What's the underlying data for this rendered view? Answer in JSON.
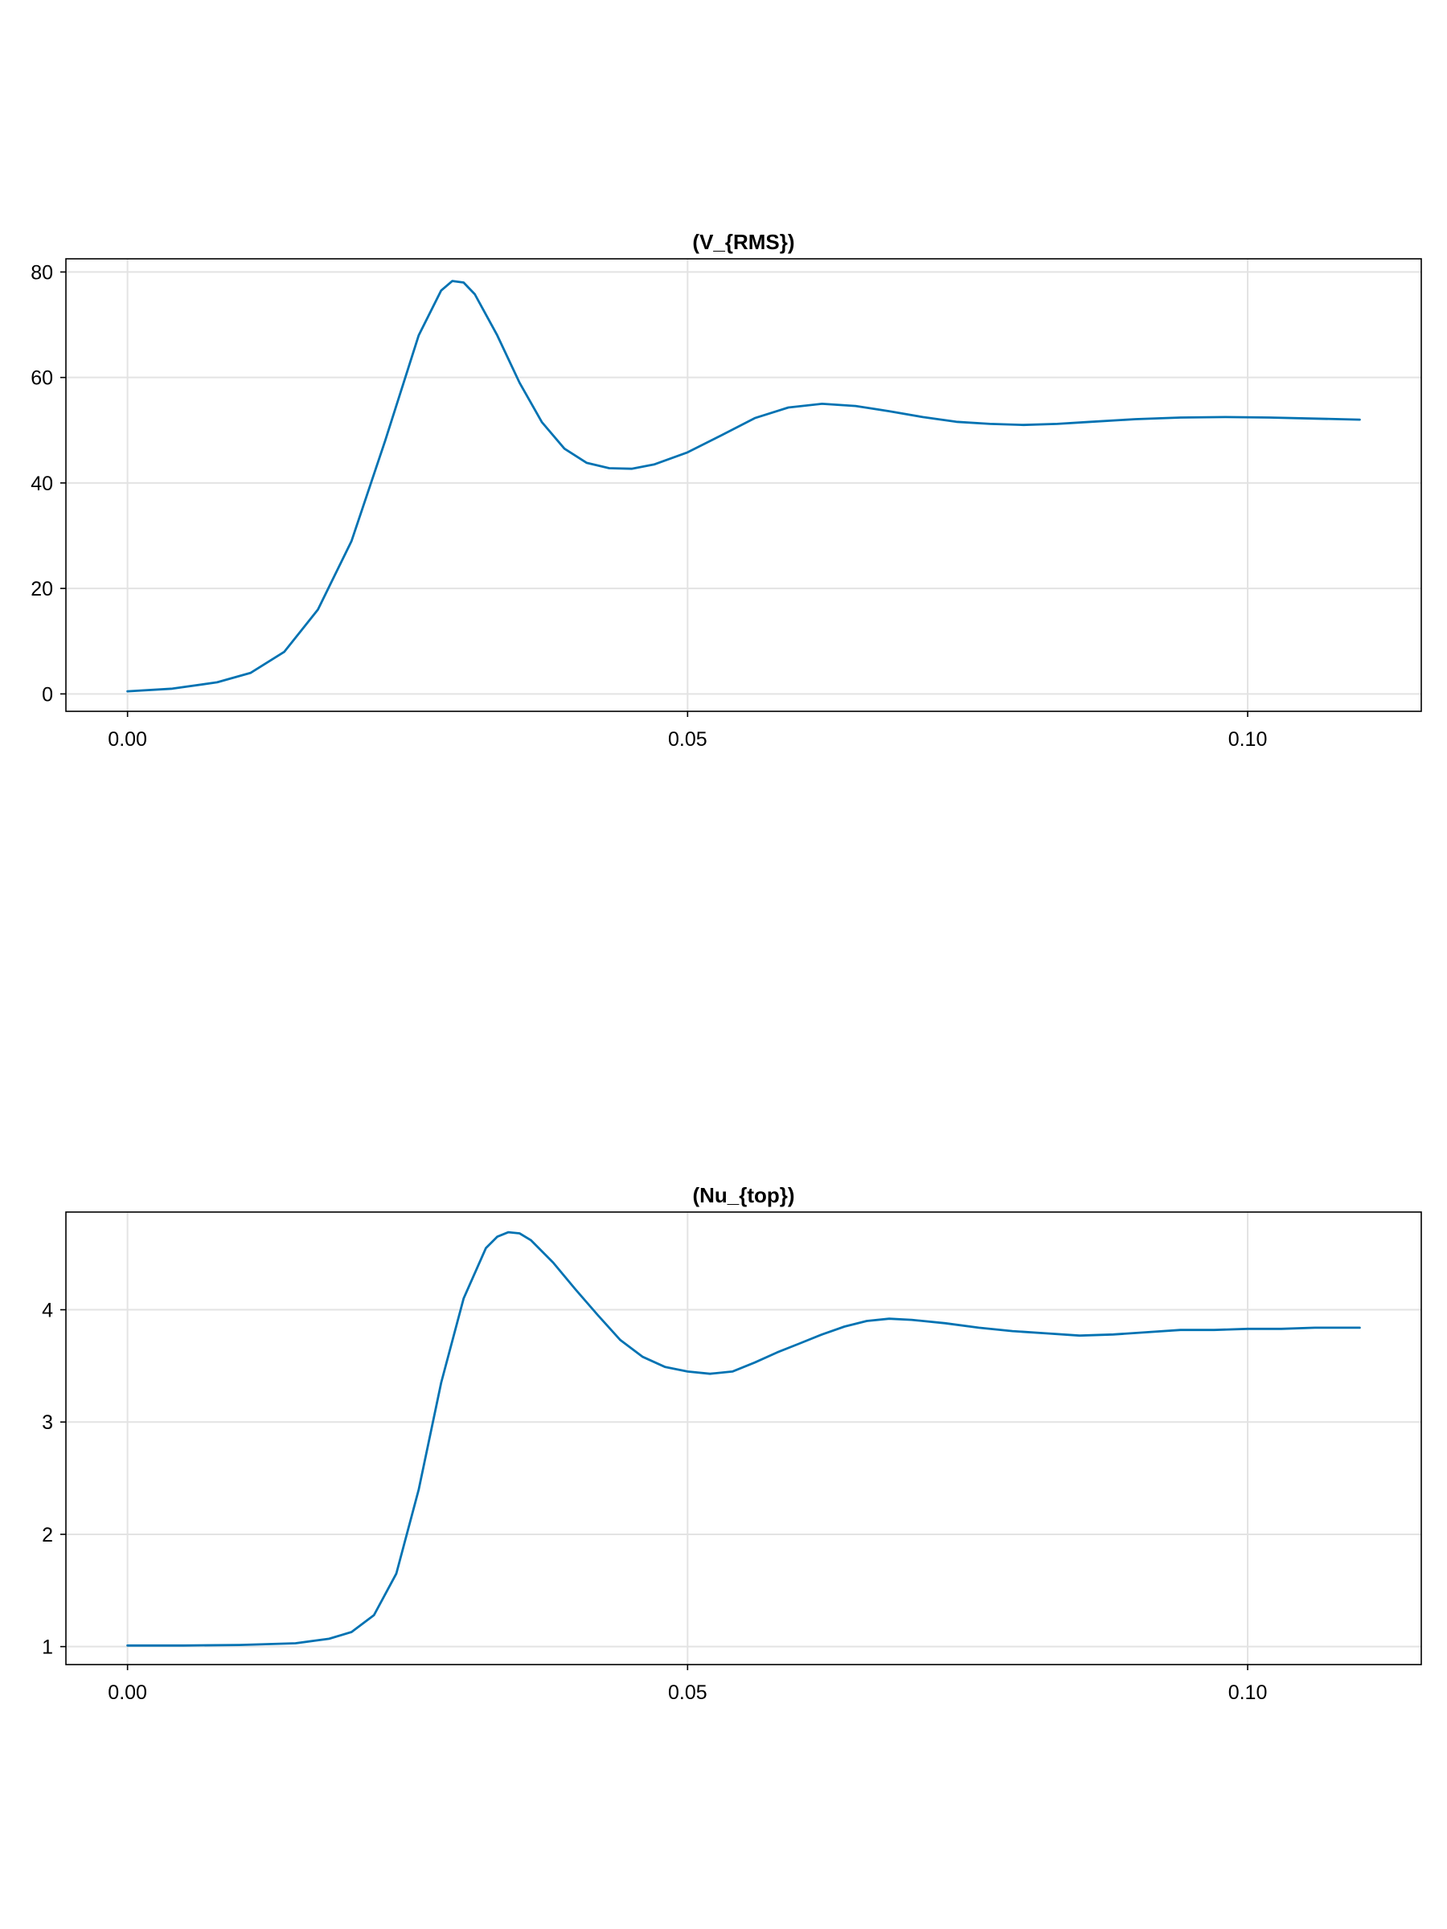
{
  "colors": {
    "series": "#0072b2",
    "grid": "#e3e3e3",
    "axis": "#000000"
  },
  "chart_data": [
    {
      "type": "line",
      "title": "(V_{RMS})",
      "xlim": [
        -0.0055,
        0.1155
      ],
      "ylim": [
        -3.3,
        82.5
      ],
      "xticks": [
        0.0,
        0.05,
        0.1
      ],
      "xtick_labels": [
        "0.00",
        "0.05",
        "0.10"
      ],
      "yticks": [
        0,
        20,
        40,
        60,
        80
      ],
      "ytick_labels": [
        "0",
        "20",
        "40",
        "60",
        "80"
      ],
      "grid": true,
      "series": [
        {
          "x": [
            0.0,
            0.004,
            0.008,
            0.011,
            0.014,
            0.017,
            0.02,
            0.023,
            0.026,
            0.028,
            0.029,
            0.03,
            0.031,
            0.033,
            0.035,
            0.037,
            0.039,
            0.041,
            0.043,
            0.045,
            0.047,
            0.05,
            0.053,
            0.056,
            0.059,
            0.062,
            0.065,
            0.068,
            0.071,
            0.074,
            0.077,
            0.08,
            0.083,
            0.086,
            0.09,
            0.094,
            0.098,
            0.102,
            0.106,
            0.11
          ],
          "y": [
            0.5,
            1.0,
            2.2,
            4.0,
            8.0,
            16.0,
            29.0,
            48.0,
            68.0,
            76.5,
            78.3,
            78.0,
            75.8,
            68.0,
            59.0,
            51.5,
            46.5,
            43.8,
            42.8,
            42.7,
            43.5,
            45.8,
            49.0,
            52.3,
            54.3,
            55.0,
            54.6,
            53.6,
            52.5,
            51.6,
            51.2,
            51.0,
            51.2,
            51.6,
            52.1,
            52.4,
            52.5,
            52.4,
            52.2,
            52.0
          ]
        }
      ]
    },
    {
      "type": "line",
      "title": "(Nu_{top})",
      "xlim": [
        -0.0055,
        0.1155
      ],
      "ylim": [
        0.84,
        4.87
      ],
      "xticks": [
        0.0,
        0.05,
        0.1
      ],
      "xtick_labels": [
        "0.00",
        "0.05",
        "0.10"
      ],
      "yticks": [
        1,
        2,
        3,
        4
      ],
      "ytick_labels": [
        "1",
        "2",
        "3",
        "4"
      ],
      "grid": true,
      "series": [
        {
          "x": [
            0.0,
            0.005,
            0.01,
            0.015,
            0.018,
            0.02,
            0.022,
            0.024,
            0.026,
            0.028,
            0.03,
            0.032,
            0.033,
            0.034,
            0.035,
            0.036,
            0.038,
            0.04,
            0.042,
            0.044,
            0.046,
            0.048,
            0.05,
            0.052,
            0.054,
            0.056,
            0.058,
            0.06,
            0.062,
            0.064,
            0.066,
            0.068,
            0.07,
            0.073,
            0.076,
            0.079,
            0.082,
            0.085,
            0.088,
            0.091,
            0.094,
            0.097,
            0.1,
            0.103,
            0.106,
            0.11
          ],
          "y": [
            1.01,
            1.01,
            1.015,
            1.03,
            1.07,
            1.13,
            1.28,
            1.65,
            2.4,
            3.35,
            4.1,
            4.55,
            4.65,
            4.69,
            4.68,
            4.62,
            4.42,
            4.18,
            3.95,
            3.73,
            3.58,
            3.49,
            3.45,
            3.43,
            3.45,
            3.53,
            3.62,
            3.7,
            3.78,
            3.85,
            3.9,
            3.92,
            3.91,
            3.88,
            3.84,
            3.81,
            3.79,
            3.77,
            3.78,
            3.8,
            3.82,
            3.82,
            3.83,
            3.83,
            3.84,
            3.84
          ]
        }
      ]
    }
  ]
}
